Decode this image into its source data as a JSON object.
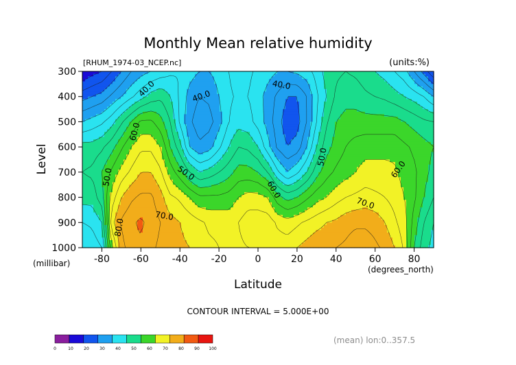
{
  "chart_data": {
    "type": "contour",
    "title": "Monthly Mean relative humidity",
    "file_label": "[RHUM_1974-03_NCEP.nc]",
    "units_label": "(units:%)",
    "ylabel": "Level",
    "yunit_label": "(millibar)",
    "xlabel": "Latitude",
    "xunit_label": "(degrees_north)",
    "x_ticks": [
      -80,
      -60,
      -40,
      -20,
      0,
      20,
      40,
      60,
      80
    ],
    "y_ticks": [
      300,
      400,
      500,
      600,
      700,
      800,
      900,
      1000
    ],
    "xlim": [
      -90,
      90
    ],
    "ylim": [
      1000,
      300
    ],
    "contour_interval_text": "CONTOUR INTERVAL = 5.000E+00",
    "mean_text": "(mean) lon:0..357.5",
    "contour_labels": [
      {
        "text": "40.0",
        "lat": -57,
        "lev": 370,
        "rot": -45
      },
      {
        "text": "40.0",
        "lat": -29,
        "lev": 400,
        "rot": -20
      },
      {
        "text": "40.0",
        "lat": 12,
        "lev": 355,
        "rot": 10
      },
      {
        "text": "60.0",
        "lat": -63,
        "lev": 540,
        "rot": -75
      },
      {
        "text": "50.0",
        "lat": -77,
        "lev": 720,
        "rot": -80
      },
      {
        "text": "50.0",
        "lat": -37,
        "lev": 705,
        "rot": 35
      },
      {
        "text": "50.0",
        "lat": 33,
        "lev": 640,
        "rot": -80
      },
      {
        "text": "60.0",
        "lat": 8,
        "lev": 770,
        "rot": 60
      },
      {
        "text": "60.0",
        "lat": 72,
        "lev": 690,
        "rot": -55
      },
      {
        "text": "70.0",
        "lat": -48,
        "lev": 875,
        "rot": 10
      },
      {
        "text": "70.0",
        "lat": 55,
        "lev": 825,
        "rot": 20
      },
      {
        "text": "80.0",
        "lat": -71,
        "lev": 920,
        "rot": -80
      }
    ],
    "colorbar": {
      "values": [
        0,
        10,
        20,
        30,
        40,
        50,
        60,
        70,
        80,
        90,
        100
      ],
      "colors": [
        "#8a1e9e",
        "#1a0ad8",
        "#1155ee",
        "#1fa0f0",
        "#2ae3f0",
        "#1adc8c",
        "#3bd62a",
        "#f2f226",
        "#f2ad1a",
        "#f25a12",
        "#e81510"
      ]
    },
    "series": [
      {
        "lat": -90,
        "values": [
          15,
          28,
          40,
          52,
          55,
          52,
          45,
          40
        ]
      },
      {
        "lat": -85,
        "values": [
          18,
          30,
          42,
          52,
          56,
          52,
          46,
          42
        ]
      },
      {
        "lat": -80,
        "values": [
          20,
          32,
          44,
          54,
          60,
          58,
          50,
          45
        ]
      },
      {
        "lat": -75,
        "values": [
          25,
          36,
          48,
          58,
          66,
          72,
          78,
          68
        ]
      },
      {
        "lat": -70,
        "values": [
          30,
          40,
          54,
          64,
          72,
          80,
          86,
          83
        ]
      },
      {
        "lat": -65,
        "values": [
          35,
          44,
          60,
          70,
          76,
          84,
          89,
          88
        ]
      },
      {
        "lat": -60,
        "values": [
          38,
          48,
          66,
          74,
          80,
          86,
          91,
          89
        ]
      },
      {
        "lat": -55,
        "values": [
          40,
          52,
          66,
          74,
          80,
          86,
          88,
          86
        ]
      },
      {
        "lat": -50,
        "values": [
          42,
          54,
          62,
          70,
          76,
          82,
          85,
          84
        ]
      },
      {
        "lat": -45,
        "values": [
          44,
          50,
          55,
          60,
          68,
          76,
          82,
          82
        ]
      },
      {
        "lat": -40,
        "values": [
          45,
          44,
          44,
          52,
          62,
          74,
          80,
          81
        ]
      },
      {
        "lat": -35,
        "values": [
          42,
          38,
          36,
          40,
          55,
          70,
          78,
          80
        ]
      },
      {
        "lat": -30,
        "values": [
          40,
          35,
          32,
          36,
          50,
          66,
          76,
          78
        ]
      },
      {
        "lat": -25,
        "values": [
          40,
          36,
          33,
          38,
          52,
          66,
          74,
          76
        ]
      },
      {
        "lat": -20,
        "values": [
          42,
          40,
          38,
          44,
          55,
          66,
          74,
          75
        ]
      },
      {
        "lat": -15,
        "values": [
          45,
          44,
          45,
          50,
          58,
          67,
          73,
          74
        ]
      },
      {
        "lat": -10,
        "values": [
          48,
          46,
          48,
          55,
          62,
          70,
          75,
          74
        ]
      },
      {
        "lat": -5,
        "values": [
          46,
          45,
          47,
          54,
          62,
          72,
          78,
          75
        ]
      },
      {
        "lat": 0,
        "values": [
          44,
          42,
          43,
          50,
          60,
          72,
          78,
          75
        ]
      },
      {
        "lat": 5,
        "values": [
          42,
          38,
          38,
          42,
          55,
          70,
          78,
          77
        ]
      },
      {
        "lat": 10,
        "values": [
          40,
          34,
          32,
          34,
          46,
          62,
          74,
          78
        ]
      },
      {
        "lat": 15,
        "values": [
          40,
          30,
          27,
          30,
          40,
          58,
          72,
          78
        ]
      },
      {
        "lat": 20,
        "values": [
          41,
          30,
          28,
          32,
          44,
          60,
          74,
          80
        ]
      },
      {
        "lat": 25,
        "values": [
          43,
          35,
          35,
          40,
          50,
          64,
          76,
          82
        ]
      },
      {
        "lat": 30,
        "values": [
          47,
          44,
          45,
          50,
          58,
          68,
          78,
          84
        ]
      },
      {
        "lat": 35,
        "values": [
          52,
          50,
          54,
          58,
          63,
          70,
          80,
          84
        ]
      },
      {
        "lat": 40,
        "values": [
          54,
          56,
          60,
          62,
          66,
          73,
          81,
          85
        ]
      },
      {
        "lat": 45,
        "values": [
          55,
          58,
          62,
          65,
          68,
          75,
          83,
          86
        ]
      },
      {
        "lat": 50,
        "values": [
          54,
          58,
          62,
          67,
          70,
          76,
          84,
          88
        ]
      },
      {
        "lat": 55,
        "values": [
          52,
          56,
          62,
          68,
          72,
          77,
          84,
          88
        ]
      },
      {
        "lat": 60,
        "values": [
          50,
          55,
          62,
          68,
          72,
          76,
          83,
          86
        ]
      },
      {
        "lat": 65,
        "values": [
          48,
          54,
          62,
          68,
          72,
          75,
          80,
          84
        ]
      },
      {
        "lat": 70,
        "values": [
          45,
          52,
          62,
          68,
          71,
          73,
          76,
          80
        ]
      },
      {
        "lat": 75,
        "values": [
          42,
          50,
          60,
          66,
          68,
          70,
          72,
          74
        ]
      },
      {
        "lat": 80,
        "values": [
          35,
          48,
          58,
          64,
          66,
          66,
          63,
          60
        ]
      },
      {
        "lat": 85,
        "values": [
          28,
          45,
          56,
          62,
          62,
          60,
          55,
          52
        ]
      },
      {
        "lat": 90,
        "values": [
          20,
          40,
          55,
          60,
          58,
          55,
          50,
          48
        ]
      }
    ]
  }
}
